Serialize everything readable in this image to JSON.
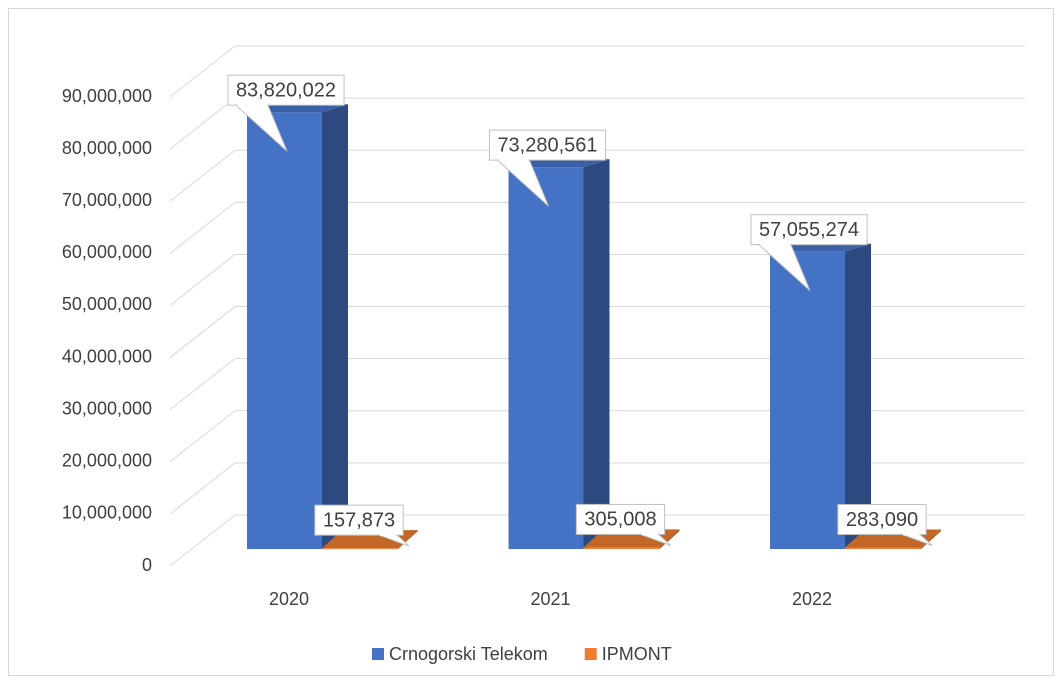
{
  "chart_data": {
    "type": "bar3d",
    "categories": [
      "2020",
      "2021",
      "2022"
    ],
    "series": [
      {
        "name": "Crnogorski Telekom",
        "color": "#4472c4",
        "values": [
          83820022,
          73280561,
          57055274
        ],
        "value_labels": [
          "83,820,022",
          "73,280,561",
          "57,055,274"
        ]
      },
      {
        "name": "IPMONT",
        "color": "#ed7d31",
        "values": [
          157873,
          305008,
          283090
        ],
        "value_labels": [
          "157,873",
          "305,008",
          "283,090"
        ]
      }
    ],
    "ylim": [
      0,
      90000000
    ],
    "yticks": [
      0,
      {
        "value": 10000000,
        "label": "10,000,000"
      },
      {
        "value": 20000000,
        "label": "20,000,000"
      },
      {
        "value": 30000000,
        "label": "30,000,000"
      },
      {
        "value": 40000000,
        "label": "40,000,000"
      },
      {
        "value": 50000000,
        "label": "50,000,000"
      },
      {
        "value": 60000000,
        "label": "60,000,000"
      },
      {
        "value": 70000000,
        "label": "70,000,000"
      },
      {
        "value": 80000000,
        "label": "80,000,000"
      },
      {
        "value": 90000000,
        "label": "90,000,000"
      }
    ],
    "grid": true,
    "legend": "bottom"
  }
}
